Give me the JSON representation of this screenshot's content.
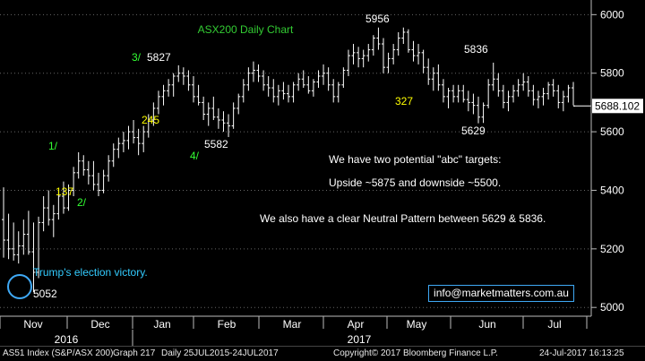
{
  "chart_data": {
    "type": "ohlc",
    "title": "ASX200 Daily Chart",
    "y_axis": {
      "ylim": [
        4970,
        6050
      ],
      "position": "right",
      "ticks": [
        5000,
        5200,
        5400,
        5600,
        5800,
        6000
      ],
      "tick_labels": [
        "5000",
        "5200",
        "5400",
        "5600",
        "5800",
        "6000"
      ]
    },
    "x_axis": {
      "month_labels": [
        "Nov",
        "Dec",
        "Jan",
        "Feb",
        "Mar",
        "Apr",
        "May",
        "Jun",
        "Jul"
      ],
      "year_labels": [
        "2016",
        "2017"
      ]
    },
    "last_price": 5688.102,
    "last_price_label": "5688.102",
    "gridlines": "horizontal dotted",
    "series": [
      {
        "values": [
          [
            5300,
            5410,
            5170,
            5230
          ],
          [
            5230,
            5320,
            5165,
            5200
          ],
          [
            5200,
            5290,
            5160,
            5180
          ],
          [
            5180,
            5260,
            5150,
            5210
          ],
          [
            5210,
            5300,
            5180,
            5250
          ],
          [
            5250,
            5330,
            5180,
            5190
          ],
          [
            5190,
            5290,
            5052,
            5120
          ],
          [
            5120,
            5310,
            5100,
            5290
          ],
          [
            5290,
            5380,
            5260,
            5340
          ],
          [
            5340,
            5400,
            5280,
            5300
          ],
          [
            5300,
            5350,
            5240,
            5320
          ],
          [
            5320,
            5400,
            5300,
            5380
          ],
          [
            5380,
            5430,
            5320,
            5340
          ],
          [
            5340,
            5420,
            5330,
            5400
          ],
          [
            5400,
            5480,
            5380,
            5460
          ],
          [
            5460,
            5530,
            5440,
            5500
          ],
          [
            5500,
            5520,
            5450,
            5470
          ],
          [
            5470,
            5500,
            5420,
            5450
          ],
          [
            5450,
            5500,
            5400,
            5420
          ],
          [
            5420,
            5460,
            5380,
            5400
          ],
          [
            5400,
            5470,
            5390,
            5450
          ],
          [
            5450,
            5520,
            5430,
            5500
          ],
          [
            5500,
            5560,
            5480,
            5540
          ],
          [
            5540,
            5580,
            5510,
            5560
          ],
          [
            5560,
            5600,
            5530,
            5570
          ],
          [
            5570,
            5620,
            5540,
            5600
          ],
          [
            5600,
            5640,
            5560,
            5580
          ],
          [
            5580,
            5610,
            5520,
            5560
          ],
          [
            5560,
            5620,
            5530,
            5600
          ],
          [
            5600,
            5660,
            5580,
            5640
          ],
          [
            5640,
            5700,
            5620,
            5680
          ],
          [
            5680,
            5740,
            5660,
            5720
          ],
          [
            5720,
            5760,
            5690,
            5740
          ],
          [
            5740,
            5780,
            5720,
            5760
          ],
          [
            5760,
            5800,
            5720,
            5790
          ],
          [
            5790,
            5827,
            5770,
            5800
          ],
          [
            5800,
            5820,
            5760,
            5790
          ],
          [
            5790,
            5810,
            5740,
            5760
          ],
          [
            5760,
            5790,
            5700,
            5720
          ],
          [
            5720,
            5760,
            5690,
            5700
          ],
          [
            5700,
            5720,
            5640,
            5660
          ],
          [
            5660,
            5700,
            5620,
            5680
          ],
          [
            5680,
            5720,
            5640,
            5650
          ],
          [
            5650,
            5680,
            5610,
            5640
          ],
          [
            5640,
            5670,
            5600,
            5630
          ],
          [
            5630,
            5660,
            5582,
            5620
          ],
          [
            5620,
            5700,
            5610,
            5680
          ],
          [
            5680,
            5730,
            5660,
            5720
          ],
          [
            5720,
            5780,
            5700,
            5760
          ],
          [
            5760,
            5820,
            5740,
            5800
          ],
          [
            5800,
            5840,
            5770,
            5810
          ],
          [
            5810,
            5830,
            5770,
            5790
          ],
          [
            5790,
            5810,
            5740,
            5760
          ],
          [
            5760,
            5790,
            5720,
            5750
          ],
          [
            5750,
            5780,
            5700,
            5720
          ],
          [
            5720,
            5760,
            5690,
            5740
          ],
          [
            5740,
            5770,
            5710,
            5730
          ],
          [
            5730,
            5760,
            5700,
            5720
          ],
          [
            5720,
            5770,
            5700,
            5760
          ],
          [
            5760,
            5800,
            5740,
            5780
          ],
          [
            5780,
            5810,
            5750,
            5760
          ],
          [
            5760,
            5790,
            5730,
            5740
          ],
          [
            5740,
            5780,
            5720,
            5770
          ],
          [
            5770,
            5810,
            5750,
            5790
          ],
          [
            5790,
            5830,
            5760,
            5800
          ],
          [
            5800,
            5820,
            5740,
            5760
          ],
          [
            5760,
            5780,
            5700,
            5720
          ],
          [
            5720,
            5770,
            5700,
            5760
          ],
          [
            5760,
            5820,
            5750,
            5810
          ],
          [
            5810,
            5880,
            5790,
            5860
          ],
          [
            5860,
            5900,
            5830,
            5870
          ],
          [
            5870,
            5890,
            5820,
            5850
          ],
          [
            5850,
            5880,
            5820,
            5860
          ],
          [
            5860,
            5900,
            5840,
            5880
          ],
          [
            5880,
            5930,
            5860,
            5920
          ],
          [
            5920,
            5956,
            5880,
            5900
          ],
          [
            5900,
            5920,
            5800,
            5820
          ],
          [
            5820,
            5870,
            5800,
            5850
          ],
          [
            5850,
            5900,
            5830,
            5880
          ],
          [
            5880,
            5940,
            5860,
            5920
          ],
          [
            5920,
            5956,
            5900,
            5940
          ],
          [
            5940,
            5950,
            5870,
            5880
          ],
          [
            5880,
            5910,
            5840,
            5860
          ],
          [
            5860,
            5900,
            5830,
            5870
          ],
          [
            5870,
            5880,
            5800,
            5820
          ],
          [
            5820,
            5850,
            5760,
            5780
          ],
          [
            5780,
            5820,
            5740,
            5800
          ],
          [
            5800,
            5830,
            5740,
            5760
          ],
          [
            5760,
            5780,
            5700,
            5720
          ],
          [
            5720,
            5750,
            5680,
            5740
          ],
          [
            5740,
            5760,
            5700,
            5720
          ],
          [
            5720,
            5760,
            5700,
            5740
          ],
          [
            5740,
            5760,
            5700,
            5710
          ],
          [
            5710,
            5740,
            5670,
            5700
          ],
          [
            5700,
            5730,
            5660,
            5690
          ],
          [
            5690,
            5720,
            5629,
            5650
          ],
          [
            5650,
            5700,
            5630,
            5690
          ],
          [
            5690,
            5780,
            5680,
            5760
          ],
          [
            5760,
            5836,
            5740,
            5780
          ],
          [
            5780,
            5800,
            5720,
            5740
          ],
          [
            5740,
            5760,
            5680,
            5700
          ],
          [
            5700,
            5740,
            5670,
            5720
          ],
          [
            5720,
            5760,
            5700,
            5740
          ],
          [
            5740,
            5780,
            5720,
            5760
          ],
          [
            5760,
            5800,
            5740,
            5770
          ],
          [
            5770,
            5790,
            5720,
            5740
          ],
          [
            5740,
            5760,
            5690,
            5710
          ],
          [
            5710,
            5740,
            5680,
            5720
          ],
          [
            5720,
            5750,
            5690,
            5730
          ],
          [
            5730,
            5770,
            5710,
            5760
          ],
          [
            5760,
            5780,
            5720,
            5740
          ],
          [
            5740,
            5760,
            5680,
            5700
          ],
          [
            5700,
            5740,
            5670,
            5720
          ],
          [
            5720,
            5760,
            5700,
            5750
          ],
          [
            5750,
            5770,
            5690,
            5688
          ]
        ]
      }
    ],
    "annotations": [
      {
        "text": "3/",
        "color": "#33ff33"
      },
      {
        "text": "5827",
        "color": "#ffffff"
      },
      {
        "text": "245",
        "color": "#ffff00"
      },
      {
        "text": "5582",
        "color": "#ffffff"
      },
      {
        "text": "4/",
        "color": "#33ff33"
      },
      {
        "text": "1/",
        "color": "#33ff33"
      },
      {
        "text": "137",
        "color": "#ffff00"
      },
      {
        "text": "2/",
        "color": "#33ff33"
      },
      {
        "text": "5956",
        "color": "#ffffff"
      },
      {
        "text": "5836",
        "color": "#ffffff"
      },
      {
        "text": "327",
        "color": "#ffff00"
      },
      {
        "text": "5629",
        "color": "#ffffff"
      },
      {
        "text": "5052",
        "color": "#ffffff"
      },
      {
        "text": "Trump's election victory.",
        "color": "#33ccff"
      }
    ],
    "commentary": [
      "We have two potential \"abc\" targets:",
      "Upside ~5875 and downside ~5500.",
      "We also have a clear Neutral Pattern between 5629 & 5836."
    ]
  },
  "watermark_email": "info@marketmatters.com.au",
  "footer": {
    "index": "AS51 Index (S&P/ASX 200)",
    "graph": "Graph 217",
    "range": "Daily 25JUL2015-24JUL2017",
    "copyright": "Copyright© 2017 Bloomberg Finance L.P.",
    "timestamp": "24-Jul-2017 16:13:25"
  },
  "colors": {
    "background": "#000000",
    "bars": "#ffffff",
    "title": "#33cc33",
    "label_white": "#ffffff",
    "wave": "#33ff33",
    "retrace": "#ffff00",
    "trump": "#33ccff",
    "circle": "#3fa9f5"
  }
}
